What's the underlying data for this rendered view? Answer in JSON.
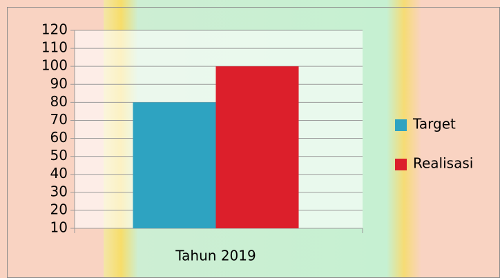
{
  "chart_data": {
    "type": "bar",
    "categories": [
      "Tahun 2019"
    ],
    "series": [
      {
        "name": "Target",
        "color": "#2ea3c1",
        "values": [
          80
        ]
      },
      {
        "name": "Realisasi",
        "color": "#dc1f2b",
        "values": [
          100
        ]
      }
    ],
    "ylim": [
      10,
      120
    ],
    "yticks": [
      10,
      20,
      30,
      40,
      50,
      60,
      70,
      80,
      90,
      100,
      110,
      120
    ],
    "grid": true,
    "legend": "right"
  }
}
